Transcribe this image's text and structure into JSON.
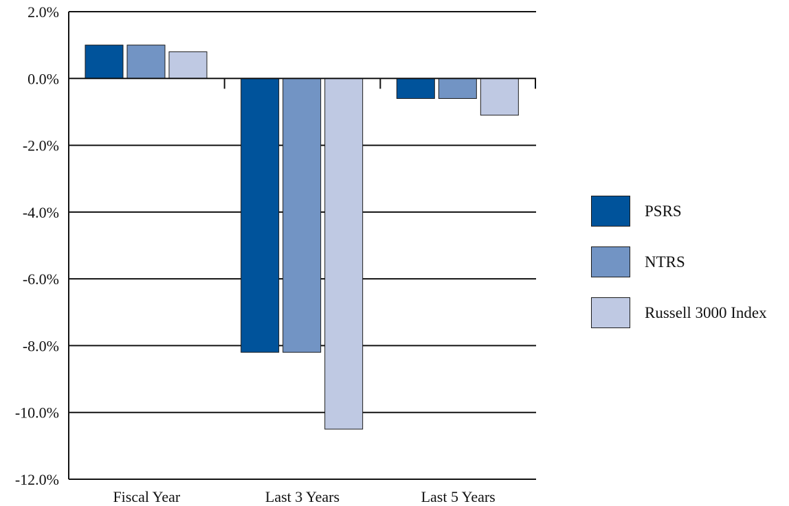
{
  "chart_data": {
    "type": "bar",
    "categories": [
      "Fiscal Year",
      "Last 3 Years",
      "Last 5 Years"
    ],
    "series": [
      {
        "name": "PSRS",
        "values": [
          1.0,
          -8.2,
          -0.6
        ],
        "color": "#00539b"
      },
      {
        "name": "NTRS",
        "values": [
          1.0,
          -8.2,
          -0.6
        ],
        "color": "#7294c4"
      },
      {
        "name": "Russell 3000 Index",
        "values": [
          0.8,
          -10.5,
          -1.1
        ],
        "color": "#bfc9e3"
      }
    ],
    "yticks": [
      "2.0%",
      "0.0%",
      "-2.0%",
      "-4.0%",
      "-6.0%",
      "-8.0%",
      "-10.0%",
      "-12.0%"
    ],
    "ylim": [
      -12,
      2
    ],
    "grid": true,
    "legend_position": "right",
    "title": "",
    "xlabel": "",
    "ylabel": ""
  }
}
